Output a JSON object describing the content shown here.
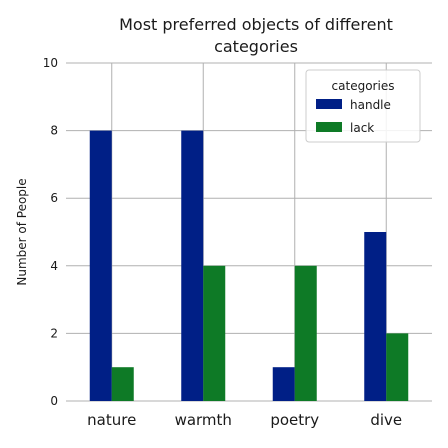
{
  "chart_data": {
    "type": "bar",
    "title_lines": [
      "Most preferred objects of different",
      "categories"
    ],
    "ylabel": "Number of People",
    "xlabel": "",
    "ylim": [
      0,
      10
    ],
    "yticks": [
      "0",
      "2",
      "4",
      "6",
      "8",
      "10"
    ],
    "grid": true,
    "categories": [
      "nature",
      "warmth",
      "poetry",
      "dive"
    ],
    "series": [
      {
        "name": "handle",
        "values": [
          8,
          8,
          1,
          5
        ],
        "color": "#001f86"
      },
      {
        "name": "lack",
        "values": [
          1,
          4,
          4,
          2
        ],
        "color": "#0e7a26"
      }
    ],
    "legend": {
      "title": "categories",
      "placement": "top-right"
    }
  }
}
